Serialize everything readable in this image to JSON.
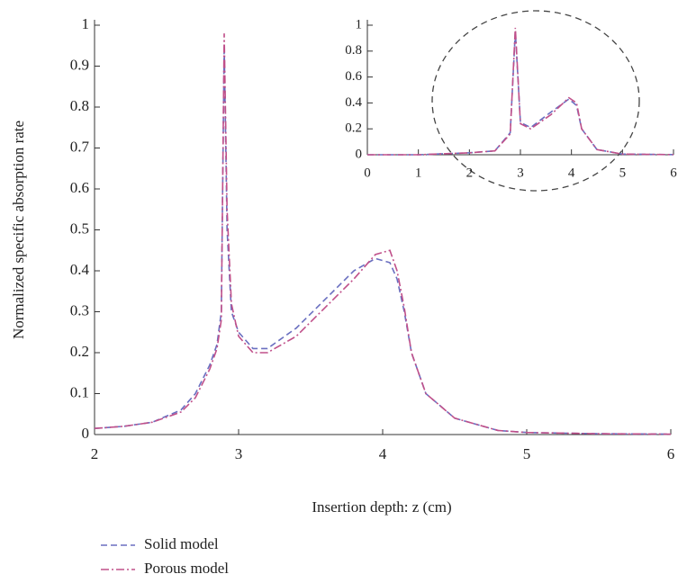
{
  "chart_data": [
    {
      "type": "line",
      "x_label": "Insertion depth: z (cm)",
      "y_label": "Normalized specific absorption rate",
      "x": [
        2,
        2.2,
        2.4,
        2.6,
        2.7,
        2.8,
        2.85,
        2.88,
        2.9,
        2.92,
        2.95,
        3.0,
        3.1,
        3.2,
        3.4,
        3.6,
        3.8,
        3.95,
        4.05,
        4.1,
        4.15,
        4.2,
        4.3,
        4.5,
        4.8,
        5,
        5.5,
        6
      ],
      "series": [
        {
          "name": "Solid model",
          "color": "#6a6fc0",
          "linestyle": "dashed",
          "values": [
            0.015,
            0.02,
            0.03,
            0.06,
            0.1,
            0.17,
            0.22,
            0.3,
            0.95,
            0.5,
            0.3,
            0.25,
            0.21,
            0.21,
            0.26,
            0.33,
            0.4,
            0.43,
            0.42,
            0.38,
            0.3,
            0.2,
            0.1,
            0.04,
            0.01,
            0.005,
            0.002,
            0.001
          ]
        },
        {
          "name": "Porous model",
          "color": "#c0508a",
          "linestyle": "dashdot",
          "values": [
            0.015,
            0.02,
            0.03,
            0.055,
            0.09,
            0.16,
            0.21,
            0.28,
            0.98,
            0.55,
            0.32,
            0.24,
            0.2,
            0.2,
            0.24,
            0.31,
            0.38,
            0.44,
            0.45,
            0.4,
            0.31,
            0.2,
            0.1,
            0.04,
            0.01,
            0.005,
            0.002,
            0.001
          ]
        }
      ],
      "xlim": [
        2,
        6
      ],
      "xticks": [
        2,
        3,
        4,
        5,
        6
      ],
      "ylim": [
        0,
        1
      ],
      "yticks": [
        0,
        0.1,
        0.2,
        0.3,
        0.4,
        0.5,
        0.6,
        0.7,
        0.8,
        0.9,
        1
      ],
      "legend": "below"
    },
    {
      "type": "line",
      "x": [
        0,
        1,
        2,
        2.5,
        2.8,
        2.9,
        3.0,
        3.2,
        3.6,
        3.95,
        4.1,
        4.2,
        4.5,
        5,
        6
      ],
      "series": [
        {
          "color": "#6a6fc0",
          "linestyle": "dashed",
          "values": [
            0,
            0,
            0.015,
            0.03,
            0.17,
            0.95,
            0.25,
            0.21,
            0.33,
            0.43,
            0.38,
            0.2,
            0.04,
            0.005,
            0.001
          ]
        },
        {
          "color": "#c0508a",
          "linestyle": "dashdot",
          "values": [
            0,
            0,
            0.015,
            0.03,
            0.16,
            0.98,
            0.24,
            0.2,
            0.31,
            0.44,
            0.4,
            0.2,
            0.04,
            0.005,
            0.001
          ]
        }
      ],
      "xlim": [
        0,
        6
      ],
      "xticks": [
        0,
        1,
        2,
        3,
        4,
        5,
        6
      ],
      "ylim": [
        0,
        1
      ],
      "yticks": [
        0,
        0.2,
        0.4,
        0.6,
        0.8,
        1
      ]
    }
  ]
}
